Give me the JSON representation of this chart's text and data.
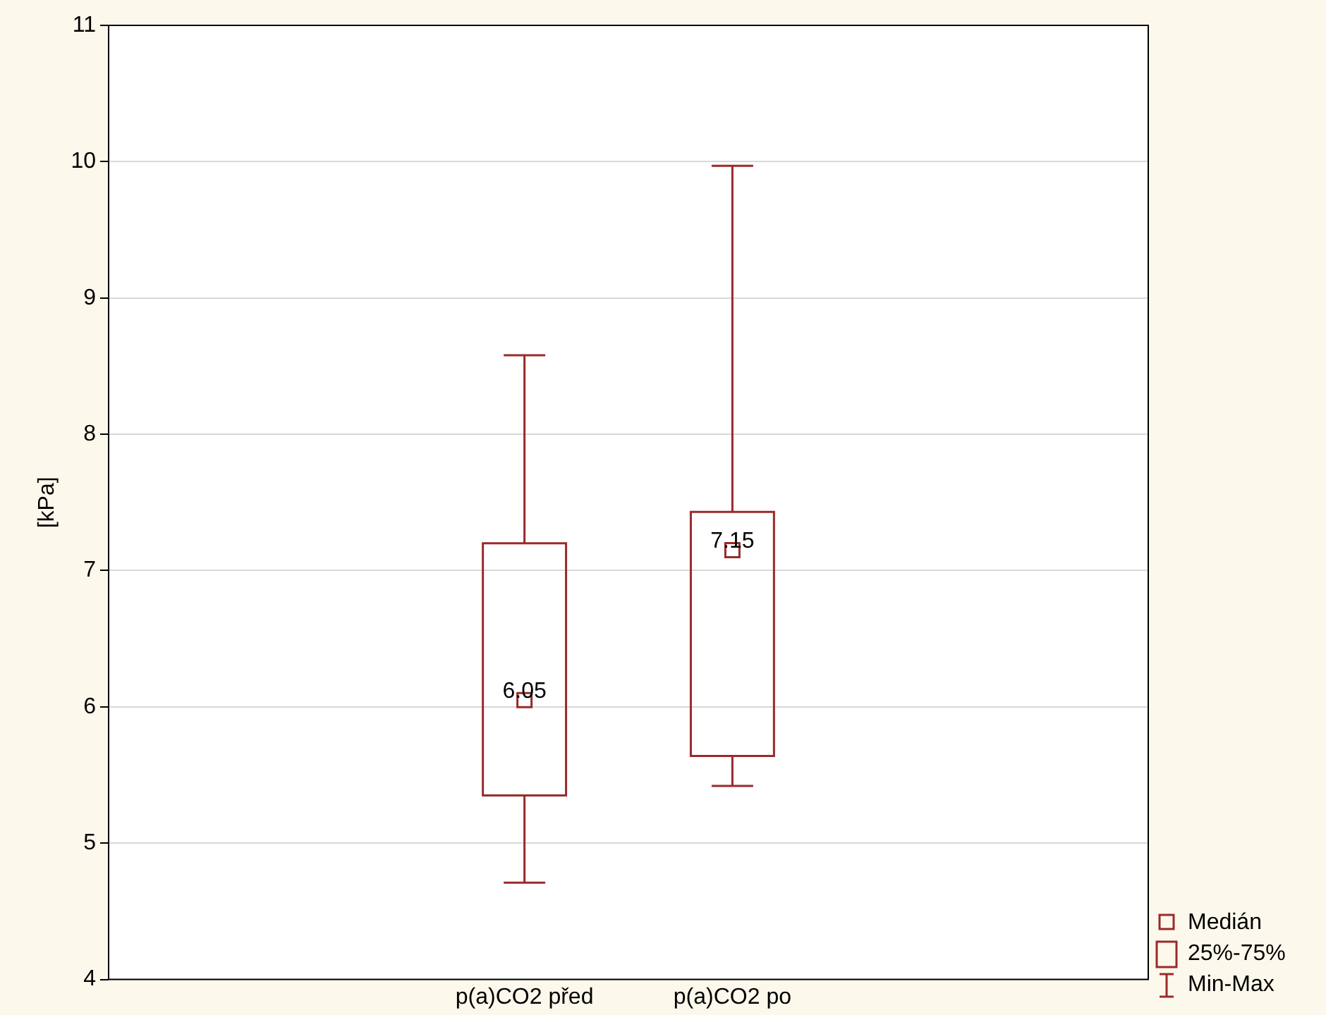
{
  "chart_data": {
    "type": "box",
    "categories": [
      "p(a)CO2 před",
      "p(a)CO2 po"
    ],
    "boxes": [
      {
        "low": 4.71,
        "q1": 5.35,
        "median": 6.05,
        "q3": 7.2,
        "high": 8.58
      },
      {
        "low": 5.42,
        "q1": 5.64,
        "median": 7.15,
        "q3": 7.43,
        "high": 9.97
      }
    ],
    "color": "#9b2a2a",
    "ylabel": "[kPa]",
    "ylim": [
      4,
      11
    ],
    "yticks": [
      4,
      5,
      6,
      7,
      8,
      9,
      10,
      11
    ],
    "grid": "y",
    "marker": "square",
    "annotations": [
      "6.05",
      "7.15",
      "Medián",
      "25%-75%",
      "Min-Max"
    ]
  }
}
